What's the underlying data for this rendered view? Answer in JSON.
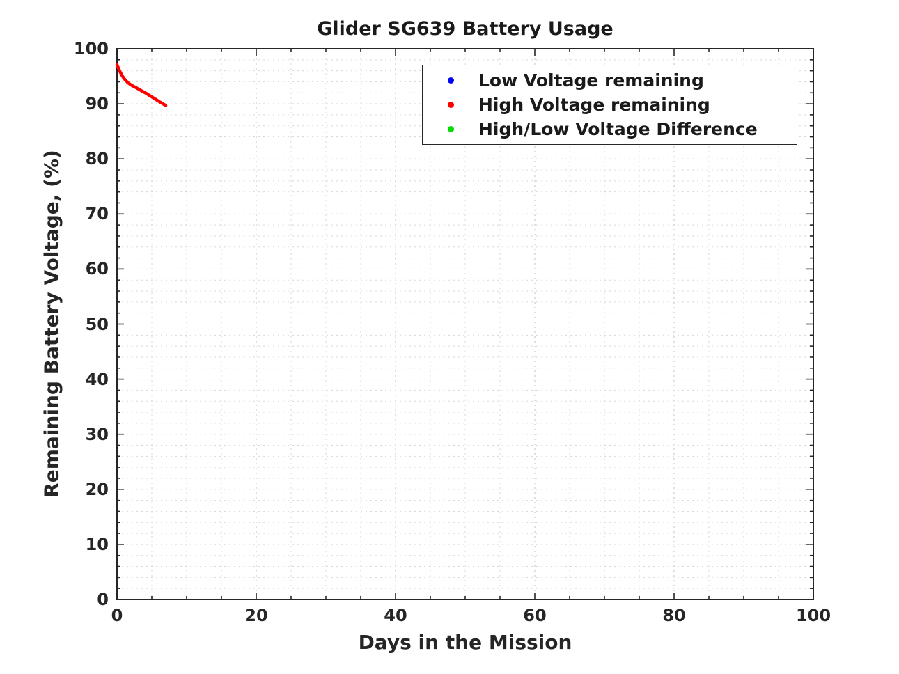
{
  "chart_data": {
    "type": "line",
    "title": "Glider SG639 Battery Usage",
    "xlabel": "Days in the Mission",
    "ylabel": "Remaining Battery Voltage, (%)",
    "xlim": [
      0,
      100
    ],
    "ylim": [
      0,
      100
    ],
    "xticks": [
      0,
      20,
      40,
      60,
      80,
      100
    ],
    "yticks": [
      0,
      10,
      20,
      30,
      40,
      50,
      60,
      70,
      80,
      90,
      100
    ],
    "x_minor_step": 5,
    "y_minor_step": 2,
    "grid": "on",
    "minor_grid": "on",
    "grid_style": "dotted",
    "legend_position": "upper-right-inside",
    "colors": {
      "axis": "#262626",
      "grid_major": "#c0c0c0",
      "grid_minor": "#d8d8d8",
      "background": "#ffffff"
    },
    "series": [
      {
        "name": "Low Voltage remaining",
        "color": "#0000ff",
        "marker": "dot",
        "x": [],
        "y": []
      },
      {
        "name": "High Voltage remaining",
        "color": "#ff0000",
        "marker": "dot",
        "x": [
          0,
          0.2,
          0.45,
          0.7,
          1.0,
          1.3,
          1.6,
          2.0,
          2.4,
          2.8,
          3.2,
          3.7,
          4.2,
          4.7,
          5.2,
          5.7,
          6.2,
          6.6,
          7.0
        ],
        "y": [
          97.1,
          96.5,
          95.8,
          95.2,
          94.6,
          94.2,
          93.8,
          93.45,
          93.15,
          92.9,
          92.6,
          92.25,
          91.9,
          91.5,
          91.1,
          90.7,
          90.3,
          90.0,
          89.7
        ]
      },
      {
        "name": "High/Low Voltage Difference",
        "color": "#00e000",
        "marker": "dot",
        "x": [],
        "y": []
      }
    ]
  }
}
